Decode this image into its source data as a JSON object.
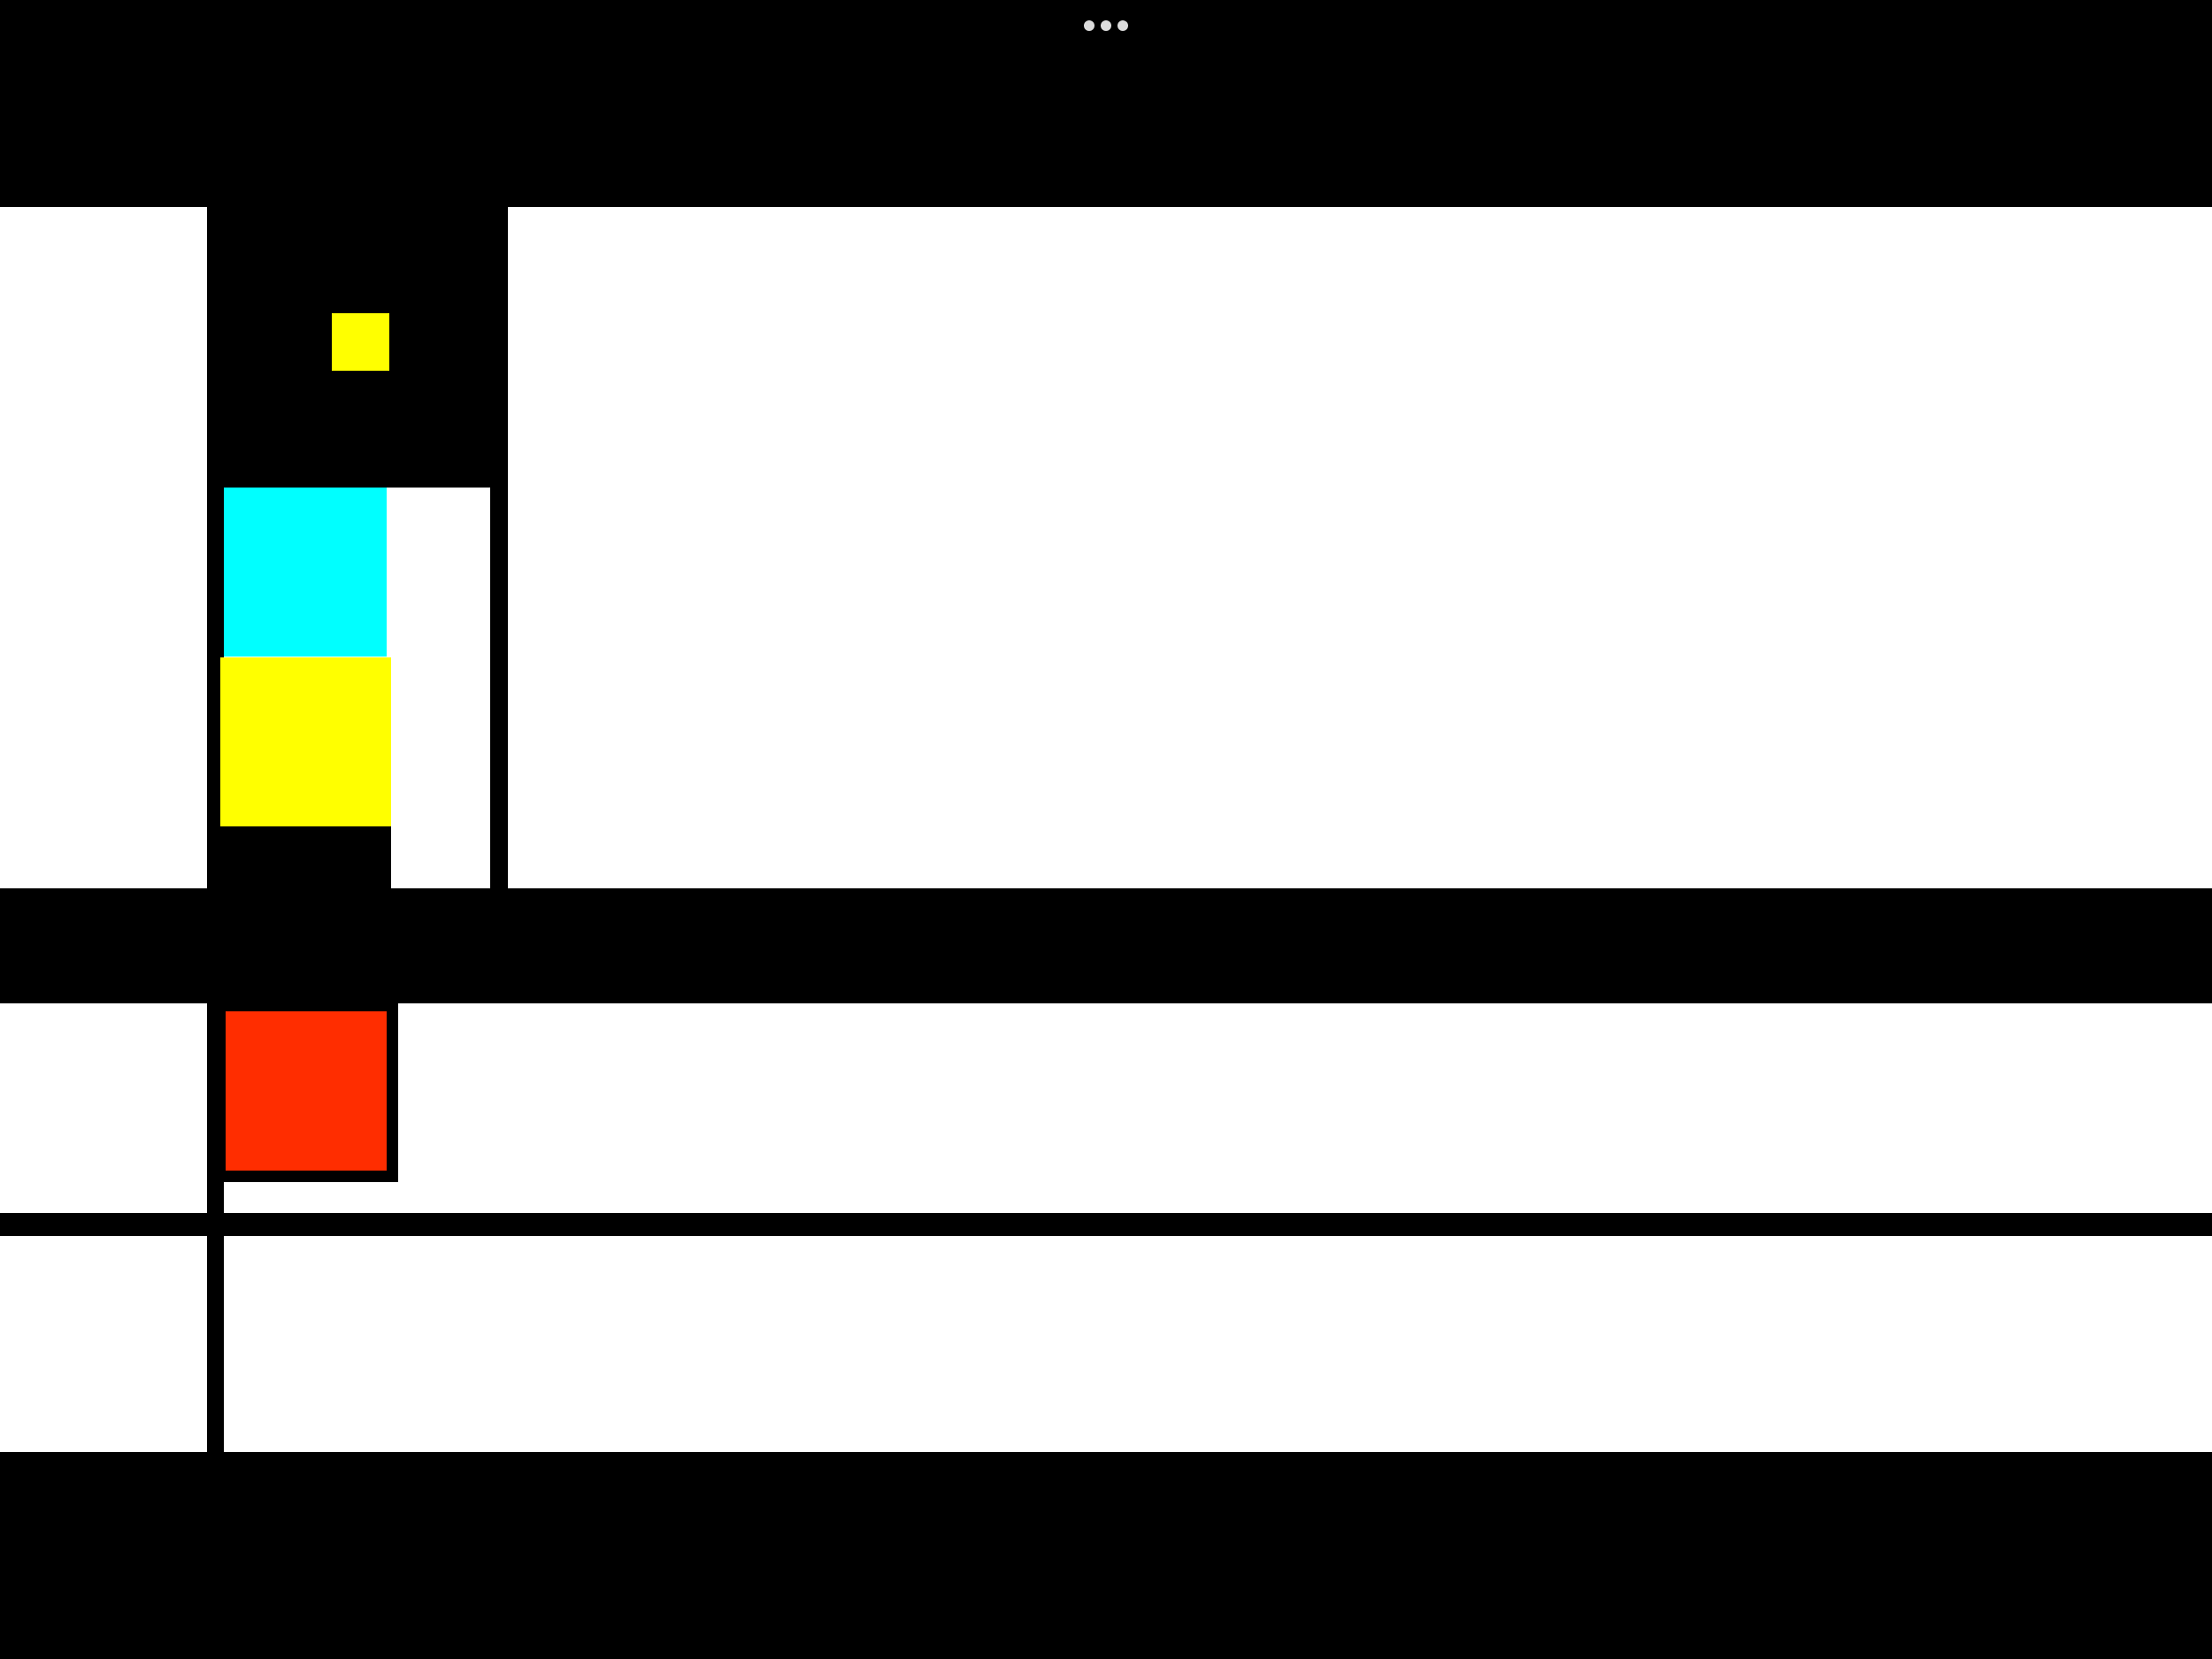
{
  "colors": {
    "background": "#ffffff",
    "line": "#000000",
    "yellow": "#ffff00",
    "cyan": "#00ffff",
    "red": "#ff2d00",
    "dots": "#dcdcdc"
  },
  "top_menu": {
    "icon": "more-dots-icon"
  }
}
